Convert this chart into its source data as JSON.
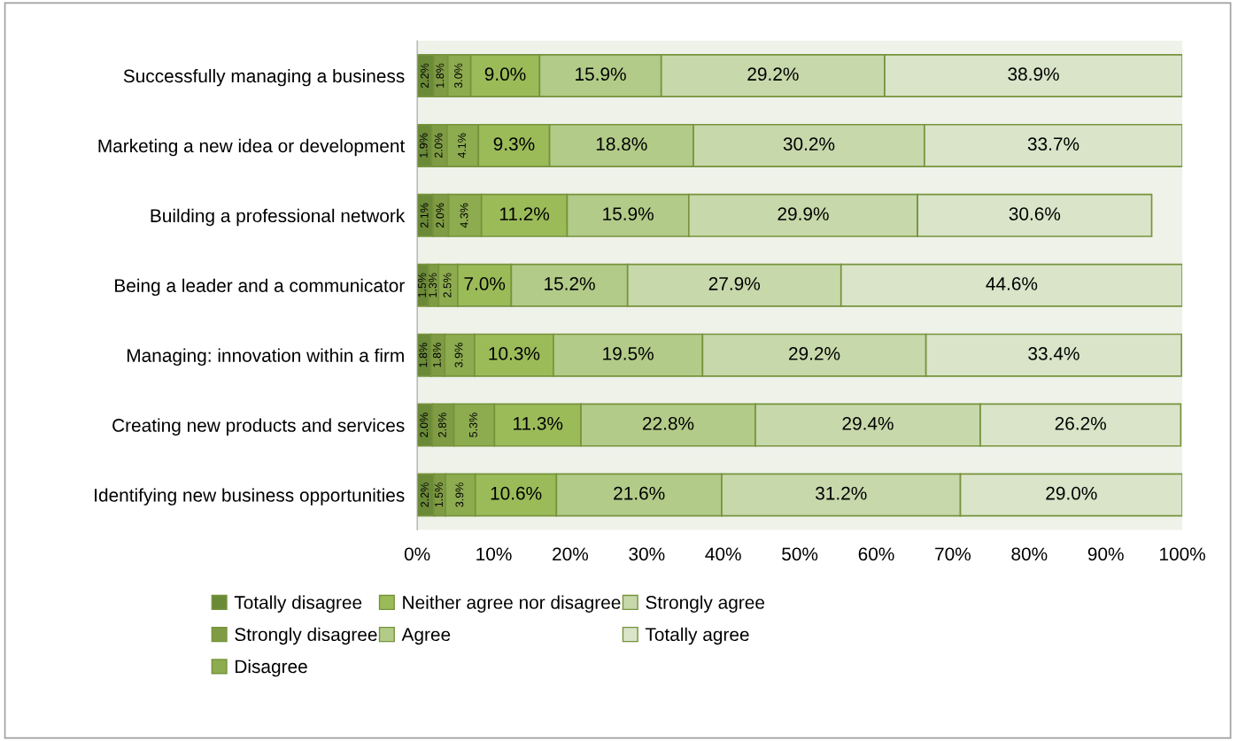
{
  "chart_data": {
    "type": "bar",
    "orientation": "horizontal",
    "stacked": true,
    "grid": false,
    "legend": "bottom",
    "categories": [
      "Successfully managing a business",
      "Marketing a new idea or development",
      "Building a professional network",
      "Being a leader and a communicator",
      "Managing: innovation within a firm",
      "Creating new products and services",
      "Identifying new business opportunities"
    ],
    "xlim": [
      0,
      100
    ],
    "xticks": [
      {
        "value": 0,
        "label": "0%"
      },
      {
        "value": 10,
        "label": "10%"
      },
      {
        "value": 20,
        "label": "20%"
      },
      {
        "value": 30,
        "label": "30%"
      },
      {
        "value": 40,
        "label": "40%"
      },
      {
        "value": 50,
        "label": "50%"
      },
      {
        "value": 60,
        "label": "60%"
      },
      {
        "value": 70,
        "label": "70%"
      },
      {
        "value": 80,
        "label": "80%"
      },
      {
        "value": 90,
        "label": "90%"
      },
      {
        "value": 100,
        "label": "100%"
      }
    ],
    "series": [
      {
        "name": "Totally disagree",
        "color": "#6b8a38",
        "values": [
          2.2,
          1.9,
          2.1,
          1.5,
          1.8,
          2.0,
          2.2
        ],
        "value_labels": [
          "2.2%",
          "1.9%",
          "2.1%",
          "1.5%",
          "1.8%",
          "2.0%",
          "2.2%"
        ]
      },
      {
        "name": "Strongly disagree",
        "color": "#7f9c45",
        "values": [
          1.8,
          2.0,
          2.0,
          1.3,
          1.8,
          2.8,
          1.5
        ],
        "value_labels": [
          "1.8%",
          "2.0%",
          "2.0%",
          "1.3%",
          "1.8%",
          "2.8%",
          "1.5%"
        ]
      },
      {
        "name": "Disagree",
        "color": "#8dab4f",
        "values": [
          3.0,
          4.1,
          4.3,
          2.5,
          3.9,
          5.3,
          3.9
        ],
        "value_labels": [
          "3.0%",
          "4.1%",
          "4.3%",
          "2.5%",
          "3.9%",
          "5.3%",
          "3.9%"
        ]
      },
      {
        "name": "Neither agree nor disagree",
        "color": "#9bbb59",
        "values": [
          9.0,
          9.3,
          11.2,
          7.0,
          10.3,
          11.3,
          10.6
        ],
        "value_labels": [
          "9.0%",
          "9.3%",
          "11.2%",
          "7.0%",
          "10.3%",
          "11.3%",
          "10.6%"
        ]
      },
      {
        "name": "Agree",
        "color": "#b2cb88",
        "values": [
          15.9,
          18.8,
          15.9,
          15.2,
          19.5,
          22.8,
          21.6
        ],
        "value_labels": [
          "15.9%",
          "18.8%",
          "15.9%",
          "15.2%",
          "19.5%",
          "22.8%",
          "21.6%"
        ]
      },
      {
        "name": "Strongly agree",
        "color": "#c7d8ab",
        "values": [
          29.2,
          30.2,
          29.9,
          27.9,
          29.2,
          29.4,
          31.2
        ],
        "value_labels": [
          "29.2%",
          "30.2%",
          "29.9%",
          "27.9%",
          "29.2%",
          "29.4%",
          "31.2%"
        ]
      },
      {
        "name": "Totally agree",
        "color": "#d9e4c8",
        "values": [
          38.9,
          33.7,
          30.6,
          44.6,
          33.4,
          26.2,
          29.0
        ],
        "value_labels": [
          "38.9%",
          "33.7%",
          "30.6%",
          "44.6%",
          "33.4%",
          "26.2%",
          "29.0%"
        ]
      }
    ]
  }
}
